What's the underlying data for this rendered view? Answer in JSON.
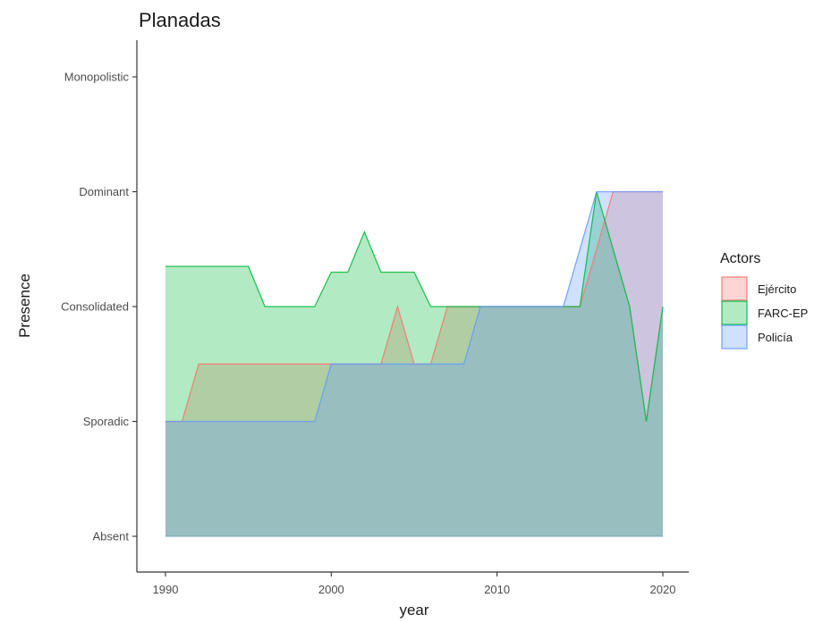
{
  "chart_data": {
    "type": "area",
    "title": "Planadas",
    "xlabel": "year",
    "ylabel": "Presence",
    "x": [
      1990,
      1991,
      1992,
      1993,
      1994,
      1995,
      1996,
      1997,
      1998,
      1999,
      2000,
      2001,
      2002,
      2003,
      2004,
      2005,
      2006,
      2007,
      2008,
      2009,
      2010,
      2011,
      2012,
      2013,
      2014,
      2015,
      2016,
      2017,
      2018,
      2019,
      2020
    ],
    "xlim": [
      1990,
      2020
    ],
    "x_ticks": [
      1990,
      2000,
      2010,
      2020
    ],
    "x_tick_labels": [
      "1990",
      "2000",
      "2010",
      "2020"
    ],
    "ylim": [
      0,
      4
    ],
    "y_ticks": [
      0,
      1,
      2,
      3,
      4
    ],
    "y_tick_labels": [
      "Absent",
      "Sporadic",
      "Consolidated",
      "Dominant",
      "Monopolistic"
    ],
    "grid": false,
    "legend": {
      "title": "Actors",
      "position": "right"
    },
    "series": [
      {
        "name": "Ejército",
        "color": "#F8766D",
        "values": [
          1,
          1,
          1.5,
          1.5,
          1.5,
          1.5,
          1.5,
          1.5,
          1.5,
          1.5,
          1.5,
          1.5,
          1.5,
          1.5,
          2,
          1.5,
          1.5,
          2,
          2,
          2,
          2,
          2,
          2,
          2,
          2,
          2,
          2.5,
          3,
          3,
          3,
          3
        ]
      },
      {
        "name": "FARC-EP",
        "color": "#00BA38",
        "values": [
          2.35,
          2.35,
          2.35,
          2.35,
          2.35,
          2.35,
          2,
          2,
          2,
          2,
          2.3,
          2.3,
          2.65,
          2.3,
          2.3,
          2.3,
          2,
          2,
          2,
          2,
          2,
          2,
          2,
          2,
          2,
          2,
          3,
          2.5,
          2,
          1,
          2
        ]
      },
      {
        "name": "Policía",
        "color": "#619CFF",
        "values": [
          1,
          1,
          1,
          1,
          1,
          1,
          1,
          1,
          1,
          1,
          1.5,
          1.5,
          1.5,
          1.5,
          1.5,
          1.5,
          1.5,
          1.5,
          1.5,
          2,
          2,
          2,
          2,
          2,
          2,
          2.5,
          3,
          3,
          3,
          3,
          3
        ]
      }
    ]
  }
}
